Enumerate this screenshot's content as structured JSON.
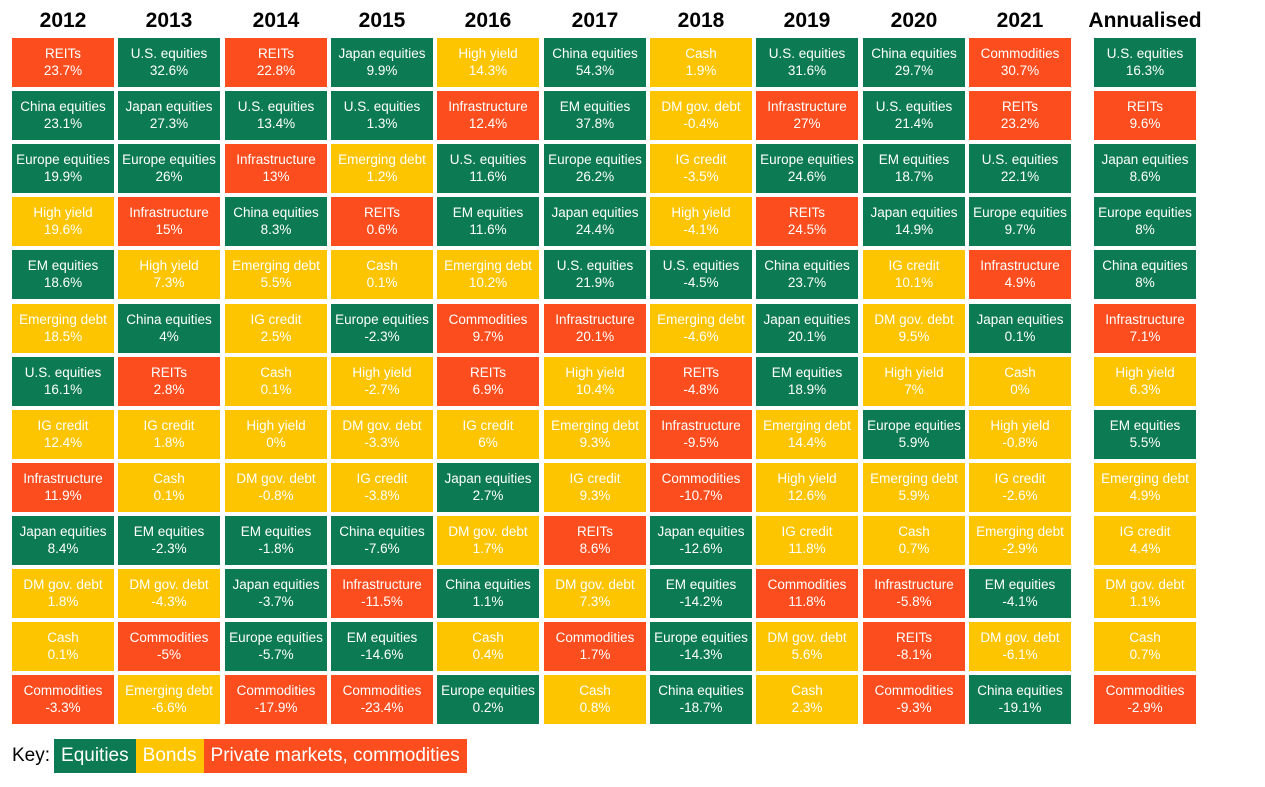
{
  "colors": {
    "Equities": "#0c7a52",
    "Bonds": "#fcc500",
    "Private": "#fb4d1e"
  },
  "chart_data": {
    "type": "table",
    "title": "",
    "columns": [
      "2012",
      "2013",
      "2014",
      "2015",
      "2016",
      "2017",
      "2018",
      "2019",
      "2020",
      "2021",
      "Annualised"
    ],
    "cells": [
      [
        [
          "REITs",
          "23.7%",
          "Private"
        ],
        [
          "China equities",
          "23.1%",
          "Equities"
        ],
        [
          "Europe equities",
          "19.9%",
          "Equities"
        ],
        [
          "High yield",
          "19.6%",
          "Bonds"
        ],
        [
          "EM equities",
          "18.6%",
          "Equities"
        ],
        [
          "Emerging debt",
          "18.5%",
          "Bonds"
        ],
        [
          "U.S. equities",
          "16.1%",
          "Equities"
        ],
        [
          "IG credit",
          "12.4%",
          "Bonds"
        ],
        [
          "Infrastructure",
          "11.9%",
          "Private"
        ],
        [
          "Japan equities",
          "8.4%",
          "Equities"
        ],
        [
          "DM gov. debt",
          "1.8%",
          "Bonds"
        ],
        [
          "Cash",
          "0.1%",
          "Bonds"
        ],
        [
          "Commodities",
          "-3.3%",
          "Private"
        ]
      ],
      [
        [
          "U.S. equities",
          "32.6%",
          "Equities"
        ],
        [
          "Japan equities",
          "27.3%",
          "Equities"
        ],
        [
          "Europe equities",
          "26%",
          "Equities"
        ],
        [
          "Infrastructure",
          "15%",
          "Private"
        ],
        [
          "High yield",
          "7.3%",
          "Bonds"
        ],
        [
          "China equities",
          "4%",
          "Equities"
        ],
        [
          "REITs",
          "2.8%",
          "Private"
        ],
        [
          "IG credit",
          "1.8%",
          "Bonds"
        ],
        [
          "Cash",
          "0.1%",
          "Bonds"
        ],
        [
          "EM equities",
          "-2.3%",
          "Equities"
        ],
        [
          "DM gov. debt",
          "-4.3%",
          "Bonds"
        ],
        [
          "Commodities",
          "-5%",
          "Private"
        ],
        [
          "Emerging debt",
          "-6.6%",
          "Bonds"
        ]
      ],
      [
        [
          "REITs",
          "22.8%",
          "Private"
        ],
        [
          "U.S. equities",
          "13.4%",
          "Equities"
        ],
        [
          "Infrastructure",
          "13%",
          "Private"
        ],
        [
          "China equities",
          "8.3%",
          "Equities"
        ],
        [
          "Emerging debt",
          "5.5%",
          "Bonds"
        ],
        [
          "IG credit",
          "2.5%",
          "Bonds"
        ],
        [
          "Cash",
          "0.1%",
          "Bonds"
        ],
        [
          "High yield",
          "0%",
          "Bonds"
        ],
        [
          "DM gov. debt",
          "-0.8%",
          "Bonds"
        ],
        [
          "EM equities",
          "-1.8%",
          "Equities"
        ],
        [
          "Japan equities",
          "-3.7%",
          "Equities"
        ],
        [
          "Europe equities",
          "-5.7%",
          "Equities"
        ],
        [
          "Commodities",
          "-17.9%",
          "Private"
        ]
      ],
      [
        [
          "Japan equities",
          "9.9%",
          "Equities"
        ],
        [
          "U.S. equities",
          "1.3%",
          "Equities"
        ],
        [
          "Emerging debt",
          "1.2%",
          "Bonds"
        ],
        [
          "REITs",
          "0.6%",
          "Private"
        ],
        [
          "Cash",
          "0.1%",
          "Bonds"
        ],
        [
          "Europe equities",
          "-2.3%",
          "Equities"
        ],
        [
          "High yield",
          "-2.7%",
          "Bonds"
        ],
        [
          "DM gov. debt",
          "-3.3%",
          "Bonds"
        ],
        [
          "IG credit",
          "-3.8%",
          "Bonds"
        ],
        [
          "China equities",
          "-7.6%",
          "Equities"
        ],
        [
          "Infrastructure",
          "-11.5%",
          "Private"
        ],
        [
          "EM equities",
          "-14.6%",
          "Equities"
        ],
        [
          "Commodities",
          "-23.4%",
          "Private"
        ]
      ],
      [
        [
          "High yield",
          "14.3%",
          "Bonds"
        ],
        [
          "Infrastructure",
          "12.4%",
          "Private"
        ],
        [
          "U.S. equities",
          "11.6%",
          "Equities"
        ],
        [
          "EM equities",
          "11.6%",
          "Equities"
        ],
        [
          "Emerging debt",
          "10.2%",
          "Bonds"
        ],
        [
          "Commodities",
          "9.7%",
          "Private"
        ],
        [
          "REITs",
          "6.9%",
          "Private"
        ],
        [
          "IG credit",
          "6%",
          "Bonds"
        ],
        [
          "Japan equities",
          "2.7%",
          "Equities"
        ],
        [
          "DM gov. debt",
          "1.7%",
          "Bonds"
        ],
        [
          "China equities",
          "1.1%",
          "Equities"
        ],
        [
          "Cash",
          "0.4%",
          "Bonds"
        ],
        [
          "Europe equities",
          "0.2%",
          "Equities"
        ]
      ],
      [
        [
          "China equities",
          "54.3%",
          "Equities"
        ],
        [
          "EM equities",
          "37.8%",
          "Equities"
        ],
        [
          "Europe equities",
          "26.2%",
          "Equities"
        ],
        [
          "Japan equities",
          "24.4%",
          "Equities"
        ],
        [
          "U.S. equities",
          "21.9%",
          "Equities"
        ],
        [
          "Infrastructure",
          "20.1%",
          "Private"
        ],
        [
          "High yield",
          "10.4%",
          "Bonds"
        ],
        [
          "Emerging debt",
          "9.3%",
          "Bonds"
        ],
        [
          "IG credit",
          "9.3%",
          "Bonds"
        ],
        [
          "REITs",
          "8.6%",
          "Private"
        ],
        [
          "DM gov. debt",
          "7.3%",
          "Bonds"
        ],
        [
          "Commodities",
          "1.7%",
          "Private"
        ],
        [
          "Cash",
          "0.8%",
          "Bonds"
        ]
      ],
      [
        [
          "Cash",
          "1.9%",
          "Bonds"
        ],
        [
          "DM gov. debt",
          "-0.4%",
          "Bonds"
        ],
        [
          "IG credit",
          "-3.5%",
          "Bonds"
        ],
        [
          "High yield",
          "-4.1%",
          "Bonds"
        ],
        [
          "U.S. equities",
          "-4.5%",
          "Equities"
        ],
        [
          "Emerging debt",
          "-4.6%",
          "Bonds"
        ],
        [
          "REITs",
          "-4.8%",
          "Private"
        ],
        [
          "Infrastructure",
          "-9.5%",
          "Private"
        ],
        [
          "Commodities",
          "-10.7%",
          "Private"
        ],
        [
          "Japan equities",
          "-12.6%",
          "Equities"
        ],
        [
          "EM equities",
          "-14.2%",
          "Equities"
        ],
        [
          "Europe equities",
          "-14.3%",
          "Equities"
        ],
        [
          "China equities",
          "-18.7%",
          "Equities"
        ]
      ],
      [
        [
          "U.S. equities",
          "31.6%",
          "Equities"
        ],
        [
          "Infrastructure",
          "27%",
          "Private"
        ],
        [
          "Europe equities",
          "24.6%",
          "Equities"
        ],
        [
          "REITs",
          "24.5%",
          "Private"
        ],
        [
          "China equities",
          "23.7%",
          "Equities"
        ],
        [
          "Japan equities",
          "20.1%",
          "Equities"
        ],
        [
          "EM equities",
          "18.9%",
          "Equities"
        ],
        [
          "Emerging debt",
          "14.4%",
          "Bonds"
        ],
        [
          "High yield",
          "12.6%",
          "Bonds"
        ],
        [
          "IG credit",
          "11.8%",
          "Bonds"
        ],
        [
          "Commodities",
          "11.8%",
          "Private"
        ],
        [
          "DM gov. debt",
          "5.6%",
          "Bonds"
        ],
        [
          "Cash",
          "2.3%",
          "Bonds"
        ]
      ],
      [
        [
          "China equities",
          "29.7%",
          "Equities"
        ],
        [
          "U.S. equities",
          "21.4%",
          "Equities"
        ],
        [
          "EM equities",
          "18.7%",
          "Equities"
        ],
        [
          "Japan equities",
          "14.9%",
          "Equities"
        ],
        [
          "IG credit",
          "10.1%",
          "Bonds"
        ],
        [
          "DM gov. debt",
          "9.5%",
          "Bonds"
        ],
        [
          "High yield",
          "7%",
          "Bonds"
        ],
        [
          "Europe equities",
          "5.9%",
          "Equities"
        ],
        [
          "Emerging debt",
          "5.9%",
          "Bonds"
        ],
        [
          "Cash",
          "0.7%",
          "Bonds"
        ],
        [
          "Infrastructure",
          "-5.8%",
          "Private"
        ],
        [
          "REITs",
          "-8.1%",
          "Private"
        ],
        [
          "Commodities",
          "-9.3%",
          "Private"
        ]
      ],
      [
        [
          "Commodities",
          "30.7%",
          "Private"
        ],
        [
          "REITs",
          "23.2%",
          "Private"
        ],
        [
          "U.S. equities",
          "22.1%",
          "Equities"
        ],
        [
          "Europe equities",
          "9.7%",
          "Equities"
        ],
        [
          "Infrastructure",
          "4.9%",
          "Private"
        ],
        [
          "Japan equities",
          "0.1%",
          "Equities"
        ],
        [
          "Cash",
          "0%",
          "Bonds"
        ],
        [
          "High yield",
          "-0.8%",
          "Bonds"
        ],
        [
          "IG credit",
          "-2.6%",
          "Bonds"
        ],
        [
          "Emerging debt",
          "-2.9%",
          "Bonds"
        ],
        [
          "EM equities",
          "-4.1%",
          "Equities"
        ],
        [
          "DM gov. debt",
          "-6.1%",
          "Bonds"
        ],
        [
          "China equities",
          "-19.1%",
          "Equities"
        ]
      ],
      [
        [
          "U.S. equities",
          "16.3%",
          "Equities"
        ],
        [
          "REITs",
          "9.6%",
          "Private"
        ],
        [
          "Japan equities",
          "8.6%",
          "Equities"
        ],
        [
          "Europe equities",
          "8%",
          "Equities"
        ],
        [
          "China equities",
          "8%",
          "Equities"
        ],
        [
          "Infrastructure",
          "7.1%",
          "Private"
        ],
        [
          "High yield",
          "6.3%",
          "Bonds"
        ],
        [
          "EM equities",
          "5.5%",
          "Equities"
        ],
        [
          "Emerging debt",
          "4.9%",
          "Bonds"
        ],
        [
          "IG credit",
          "4.4%",
          "Bonds"
        ],
        [
          "DM gov. debt",
          "1.1%",
          "Bonds"
        ],
        [
          "Cash",
          "0.7%",
          "Bonds"
        ],
        [
          "Commodities",
          "-2.9%",
          "Private"
        ]
      ]
    ],
    "legend": {
      "label": "Key:",
      "entries": [
        {
          "name": "Equities",
          "category": "Equities"
        },
        {
          "name": "Bonds",
          "category": "Bonds"
        },
        {
          "name": "Private markets, commodities",
          "category": "Private"
        }
      ],
      "placement": "bottom-left"
    }
  }
}
